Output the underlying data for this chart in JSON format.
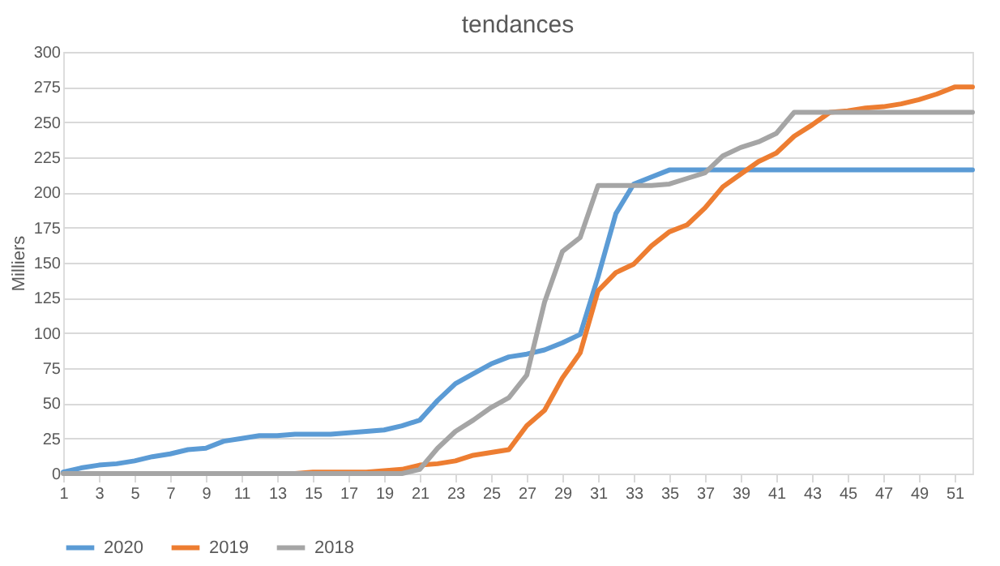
{
  "chart_data": {
    "type": "line",
    "title": "tendances",
    "ylabel": "Milliers",
    "x": [
      1,
      2,
      3,
      4,
      5,
      6,
      7,
      8,
      9,
      10,
      11,
      12,
      13,
      14,
      15,
      16,
      17,
      18,
      19,
      20,
      21,
      22,
      23,
      24,
      25,
      26,
      27,
      28,
      29,
      30,
      31,
      32,
      33,
      34,
      35,
      36,
      37,
      38,
      39,
      40,
      41,
      42,
      43,
      44,
      45,
      46,
      47,
      48,
      49,
      50,
      51,
      52
    ],
    "series": [
      {
        "name": "2020",
        "color": "#5b9bd5",
        "values": [
          1,
          4,
          6,
          7,
          9,
          12,
          14,
          17,
          18,
          23,
          25,
          27,
          27,
          28,
          28,
          28,
          29,
          30,
          31,
          34,
          38,
          52,
          64,
          71,
          78,
          83,
          85,
          88,
          93,
          99,
          140,
          185,
          206,
          211,
          216,
          216,
          216,
          216,
          216,
          216,
          216,
          216,
          216,
          216,
          216,
          216,
          216,
          216,
          216,
          216,
          216,
          216
        ]
      },
      {
        "name": "2019",
        "color": "#ed7d31",
        "values": [
          null,
          null,
          null,
          null,
          null,
          null,
          null,
          null,
          null,
          null,
          null,
          null,
          0,
          0,
          1,
          1,
          1,
          1,
          2,
          3,
          6,
          7,
          9,
          13,
          15,
          17,
          34,
          45,
          68,
          86,
          130,
          143,
          149,
          162,
          172,
          177,
          189,
          204,
          213,
          222,
          228,
          240,
          248,
          257,
          258,
          260,
          261,
          263,
          266,
          270,
          275,
          275
        ]
      },
      {
        "name": "2018",
        "color": "#a5a5a5",
        "values": [
          0,
          0,
          0,
          0,
          0,
          0,
          0,
          0,
          0,
          0,
          0,
          0,
          0,
          0,
          0,
          0,
          0,
          0,
          0,
          0,
          3,
          18,
          30,
          38,
          47,
          54,
          70,
          122,
          158,
          168,
          205,
          205,
          205,
          205,
          206,
          210,
          214,
          226,
          232,
          236,
          242,
          257,
          257,
          257,
          257,
          257,
          257,
          257,
          257,
          257,
          257,
          257
        ]
      }
    ],
    "xlim": [
      1,
      52
    ],
    "xticks": [
      1,
      3,
      5,
      7,
      9,
      11,
      13,
      15,
      17,
      19,
      21,
      23,
      25,
      27,
      29,
      31,
      33,
      35,
      37,
      39,
      41,
      43,
      45,
      47,
      49,
      51
    ],
    "ylim": [
      0,
      300
    ],
    "yticks": [
      0,
      25,
      50,
      75,
      100,
      125,
      150,
      175,
      200,
      225,
      250,
      275,
      300
    ],
    "grid": "y",
    "legend": "bottom",
    "marker": "none",
    "line_style": "solid"
  }
}
